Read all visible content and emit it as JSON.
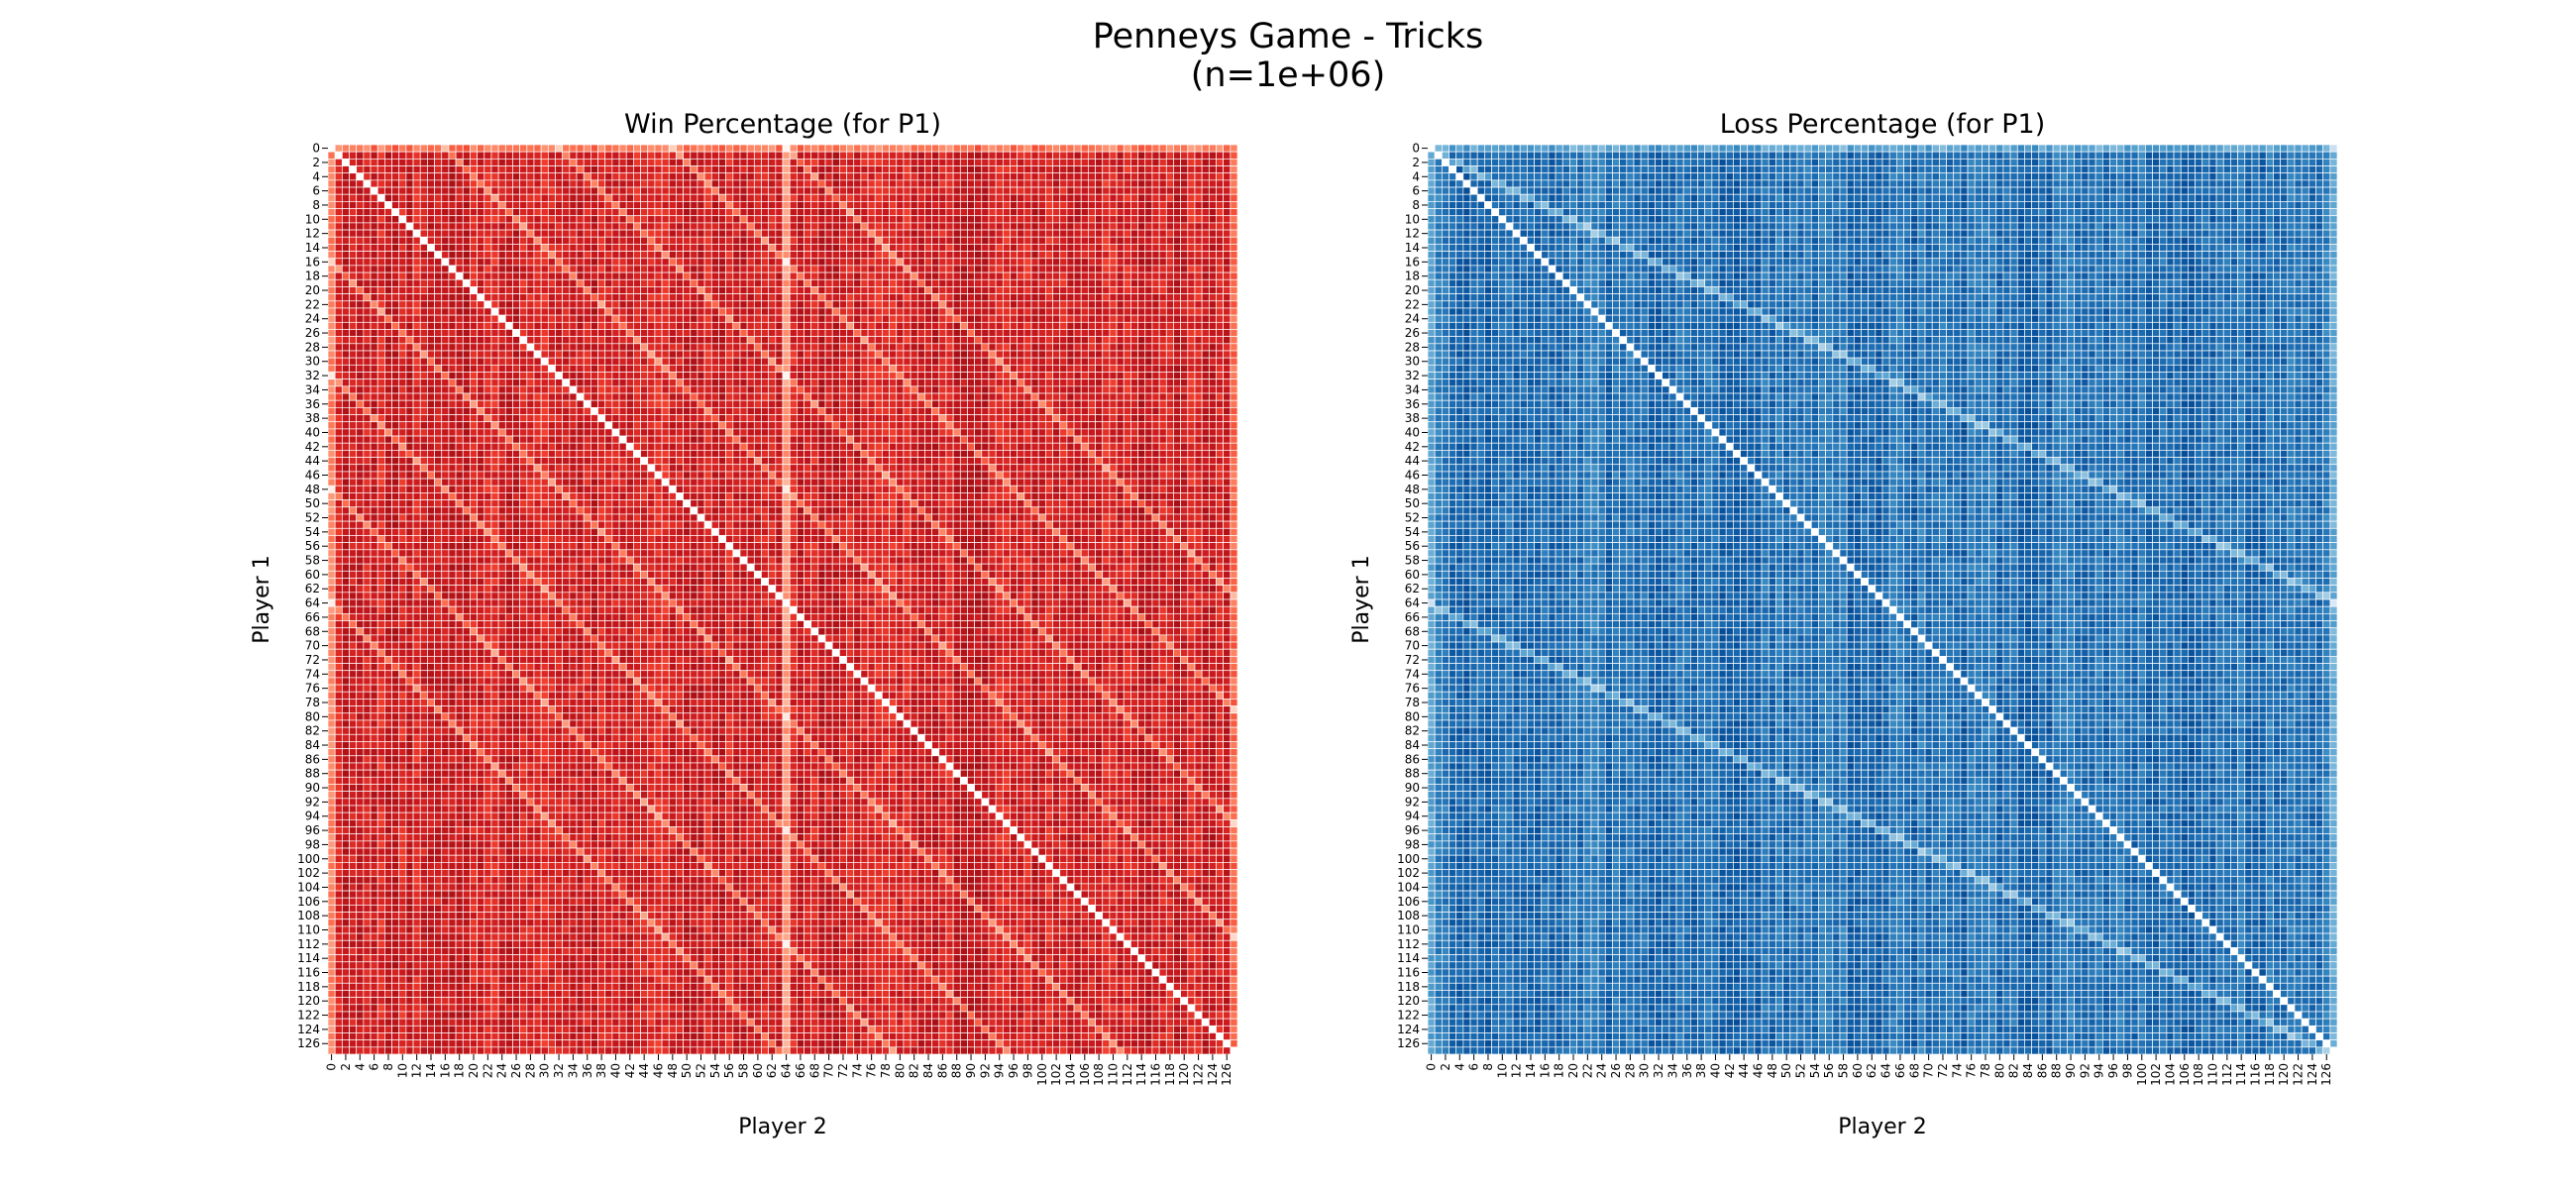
{
  "figure": {
    "title_line1": "Penneys Game - Tricks",
    "title_line2": "(n=1e+06)"
  },
  "chart_data": [
    {
      "type": "heatmap",
      "title": "Win Percentage (for P1)",
      "xlabel": "Player 2",
      "ylabel": "Player 1",
      "rows": 128,
      "cols": 128,
      "x_tick_labels": [
        "0",
        "2",
        "4",
        "6",
        "8",
        "10",
        "12",
        "14",
        "16",
        "18",
        "20",
        "22",
        "24",
        "26",
        "28",
        "30",
        "32",
        "34",
        "36",
        "38",
        "40",
        "42",
        "44",
        "46",
        "48",
        "50",
        "52",
        "54",
        "56",
        "58",
        "60",
        "62",
        "64",
        "66",
        "68",
        "70",
        "72",
        "74",
        "76",
        "78",
        "80",
        "82",
        "84",
        "86",
        "88",
        "90",
        "92",
        "94",
        "96",
        "98",
        "100",
        "102",
        "104",
        "106",
        "108",
        "110",
        "112",
        "114",
        "116",
        "118",
        "120",
        "122",
        "124",
        "126"
      ],
      "y_tick_labels": [
        "0",
        "2",
        "4",
        "6",
        "8",
        "10",
        "12",
        "14",
        "16",
        "18",
        "20",
        "22",
        "24",
        "26",
        "28",
        "30",
        "32",
        "34",
        "36",
        "38",
        "40",
        "42",
        "44",
        "46",
        "48",
        "50",
        "52",
        "54",
        "56",
        "58",
        "60",
        "62",
        "64",
        "66",
        "68",
        "70",
        "72",
        "74",
        "76",
        "78",
        "80",
        "82",
        "84",
        "86",
        "88",
        "90",
        "92",
        "94",
        "96",
        "98",
        "100",
        "102",
        "104",
        "106",
        "108",
        "110",
        "112",
        "114",
        "116",
        "118",
        "120",
        "122",
        "124",
        "126"
      ],
      "colormap": "Reds",
      "colorbar": false,
      "cell_gridlines": "white",
      "diagonal": "white",
      "light_bands": "diagonal stripes offset by ±16, ±32, ±48 and ±64 from the main diagonal; light column at 64",
      "dominant_color": "#e0312b"
    },
    {
      "type": "heatmap",
      "title": "Loss Percentage (for P1)",
      "xlabel": "Player 2",
      "ylabel": "Player 1",
      "rows": 128,
      "cols": 128,
      "x_tick_labels": [
        "0",
        "2",
        "4",
        "6",
        "8",
        "10",
        "12",
        "14",
        "16",
        "18",
        "20",
        "22",
        "24",
        "26",
        "28",
        "30",
        "32",
        "34",
        "36",
        "38",
        "40",
        "42",
        "44",
        "46",
        "48",
        "50",
        "52",
        "54",
        "56",
        "58",
        "60",
        "62",
        "64",
        "66",
        "68",
        "70",
        "72",
        "74",
        "76",
        "78",
        "80",
        "82",
        "84",
        "86",
        "88",
        "90",
        "92",
        "94",
        "96",
        "98",
        "100",
        "102",
        "104",
        "106",
        "108",
        "110",
        "112",
        "114",
        "116",
        "118",
        "120",
        "122",
        "124",
        "126"
      ],
      "y_tick_labels": [
        "0",
        "2",
        "4",
        "6",
        "8",
        "10",
        "12",
        "14",
        "16",
        "18",
        "20",
        "22",
        "24",
        "26",
        "28",
        "30",
        "32",
        "34",
        "36",
        "38",
        "40",
        "42",
        "44",
        "46",
        "48",
        "50",
        "52",
        "54",
        "56",
        "58",
        "60",
        "62",
        "64",
        "66",
        "68",
        "70",
        "72",
        "74",
        "76",
        "78",
        "80",
        "82",
        "84",
        "86",
        "88",
        "90",
        "92",
        "94",
        "96",
        "98",
        "100",
        "102",
        "104",
        "106",
        "108",
        "110",
        "112",
        "114",
        "116",
        "118",
        "120",
        "122",
        "124",
        "126"
      ],
      "colormap": "Blues",
      "colorbar": false,
      "cell_gridlines": "white",
      "diagonal": "white",
      "light_bands": "lines at half slope from rows 0 and 64",
      "dominant_color": "#2c75b6"
    }
  ]
}
